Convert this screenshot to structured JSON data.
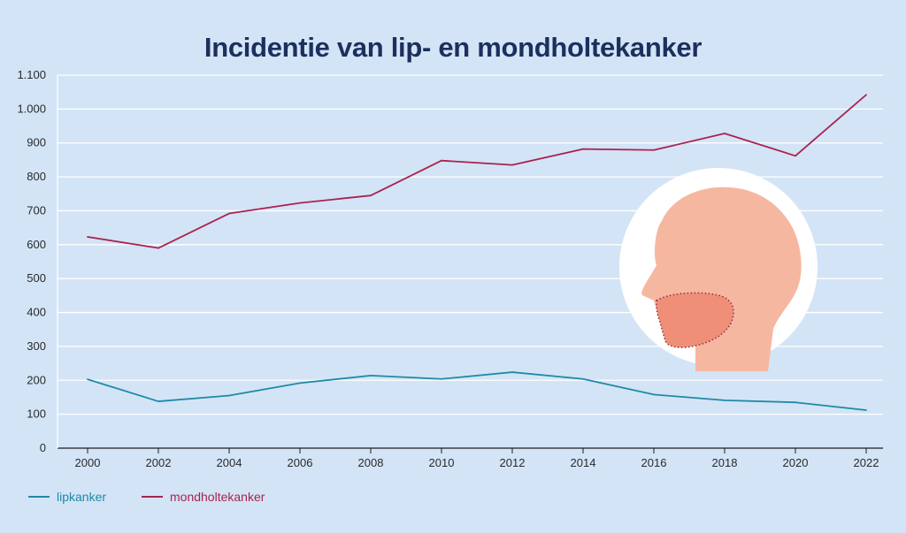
{
  "title": "Incidentie van lip- en mondholtekanker",
  "colors": {
    "lipkanker": "#1f8aa6",
    "mondholtekanker": "#a8234f",
    "background": "#d3e4f6"
  },
  "chart_data": {
    "type": "line",
    "title": "Incidentie van lip- en mondholtekanker",
    "xlabel": "",
    "ylabel": "",
    "x": [
      2000,
      2002,
      2004,
      2006,
      2008,
      2010,
      2012,
      2014,
      2016,
      2018,
      2020,
      2022
    ],
    "x_tick_labels": [
      "2000",
      "2002",
      "2004",
      "2006",
      "2008",
      "2010",
      "2012",
      "2014",
      "2016",
      "2018",
      "2020",
      "2022"
    ],
    "ylim": [
      0,
      1100
    ],
    "y_ticks": [
      0,
      100,
      200,
      300,
      400,
      500,
      600,
      700,
      800,
      900,
      1000,
      1100
    ],
    "y_tick_labels": [
      "0",
      "100",
      "200",
      "300",
      "400",
      "500",
      "600",
      "700",
      "800",
      "900",
      "1.000",
      "1.100"
    ],
    "grid": true,
    "legend_position": "bottom-left",
    "series": [
      {
        "name": "lipkanker",
        "values": [
          203,
          138,
          155,
          192,
          214,
          204,
          224,
          204,
          158,
          141,
          135,
          112
        ]
      },
      {
        "name": "mondholtekanker",
        "values": [
          623,
          590,
          692,
          723,
          745,
          848,
          835,
          882,
          879,
          928,
          862,
          1042
        ]
      }
    ]
  },
  "legend": {
    "lipkanker": "lipkanker",
    "mondholtekanker": "mondholtekanker"
  },
  "illustration": {
    "icon": "head-profile-mouth-icon"
  }
}
